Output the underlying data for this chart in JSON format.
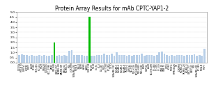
{
  "title": "Protein Array Results for mAb CPTC-YAP1-2",
  "title_fontsize": 5.5,
  "ylim": [
    0,
    5.0
  ],
  "yticks": [
    0.0,
    0.5,
    1.0,
    1.5,
    2.0,
    2.5,
    3.0,
    3.5,
    4.0,
    4.5,
    5.0
  ],
  "bar_color_default": "#b8cfe8",
  "bar_color_green": "#00bb00",
  "background_color": "#ffffff",
  "labels": [
    "U133-A",
    "HELA S3",
    "IGROV1",
    "HOP92",
    "MCF7",
    "A549",
    "SF268",
    "HCT-116",
    "HCT-15",
    "HT29",
    "SW620",
    "COLO205",
    "HCC-2998",
    "KM12",
    "SW-948",
    "UACC-257",
    "SK-MEL-28",
    "MALME-3M",
    "UACC-62",
    "SK-MEL-5",
    "M14",
    "LOX IMVI",
    "MDA-MB-435",
    "MDA-N",
    "786-0",
    "A498",
    "ACHN",
    "CAKI-1",
    "RXF 393",
    "SN12C",
    "TK-10",
    "UO-31",
    "PC-3",
    "DU-145",
    "MCF7",
    "HS 578T",
    "BT-549",
    "T-47D",
    "MDA-MB-231",
    "OVCAR-3",
    "OVCAR-4",
    "OVCAR-5",
    "OVCAR-8",
    "SK-OV-3",
    "IGROV1",
    "NCI-H23",
    "NCI-H226",
    "NCI-H322M",
    "NCI-H460",
    "NCI-H522",
    "EKVX",
    "HOP-62",
    "A549",
    "NCI-H322M",
    "SF-268",
    "SF-295",
    "SF-539",
    "SNB-19",
    "SNB-75",
    "U251",
    "K-562",
    "MOLT-4",
    "RPMI-8226",
    "SR",
    "LOXIMVI",
    "SK-MEL-2",
    "SK-MEL-28",
    "SK-MEL-5",
    "UACC-257",
    "UACC-62",
    "M14",
    "MDA-MB-435",
    "BT-549",
    "MDA-N",
    "MCF7"
  ],
  "values": [
    0.72,
    0.8,
    0.75,
    0.72,
    0.68,
    0.78,
    0.7,
    0.65,
    0.74,
    0.7,
    0.73,
    0.68,
    0.65,
    0.73,
    2.0,
    0.7,
    0.74,
    0.65,
    0.74,
    0.7,
    1.2,
    1.25,
    0.78,
    0.74,
    0.78,
    0.78,
    0.7,
    0.7,
    4.55,
    0.7,
    0.7,
    0.78,
    0.74,
    0.78,
    0.88,
    0.78,
    0.74,
    0.88,
    0.7,
    1.0,
    0.78,
    0.74,
    0.78,
    0.7,
    0.74,
    0.7,
    0.74,
    0.78,
    0.78,
    0.88,
    0.7,
    0.74,
    0.78,
    0.74,
    0.7,
    0.78,
    1.0,
    1.1,
    0.88,
    0.78,
    0.7,
    0.74,
    0.7,
    0.78,
    0.74,
    0.78,
    0.7,
    0.74,
    0.74,
    0.78,
    0.84,
    0.7,
    0.74,
    0.7,
    1.35
  ],
  "green_indices": [
    14,
    28
  ],
  "dot_color": "#aaaaaa",
  "tick_fontsize": 3.2,
  "label_fontsize": 2.2
}
